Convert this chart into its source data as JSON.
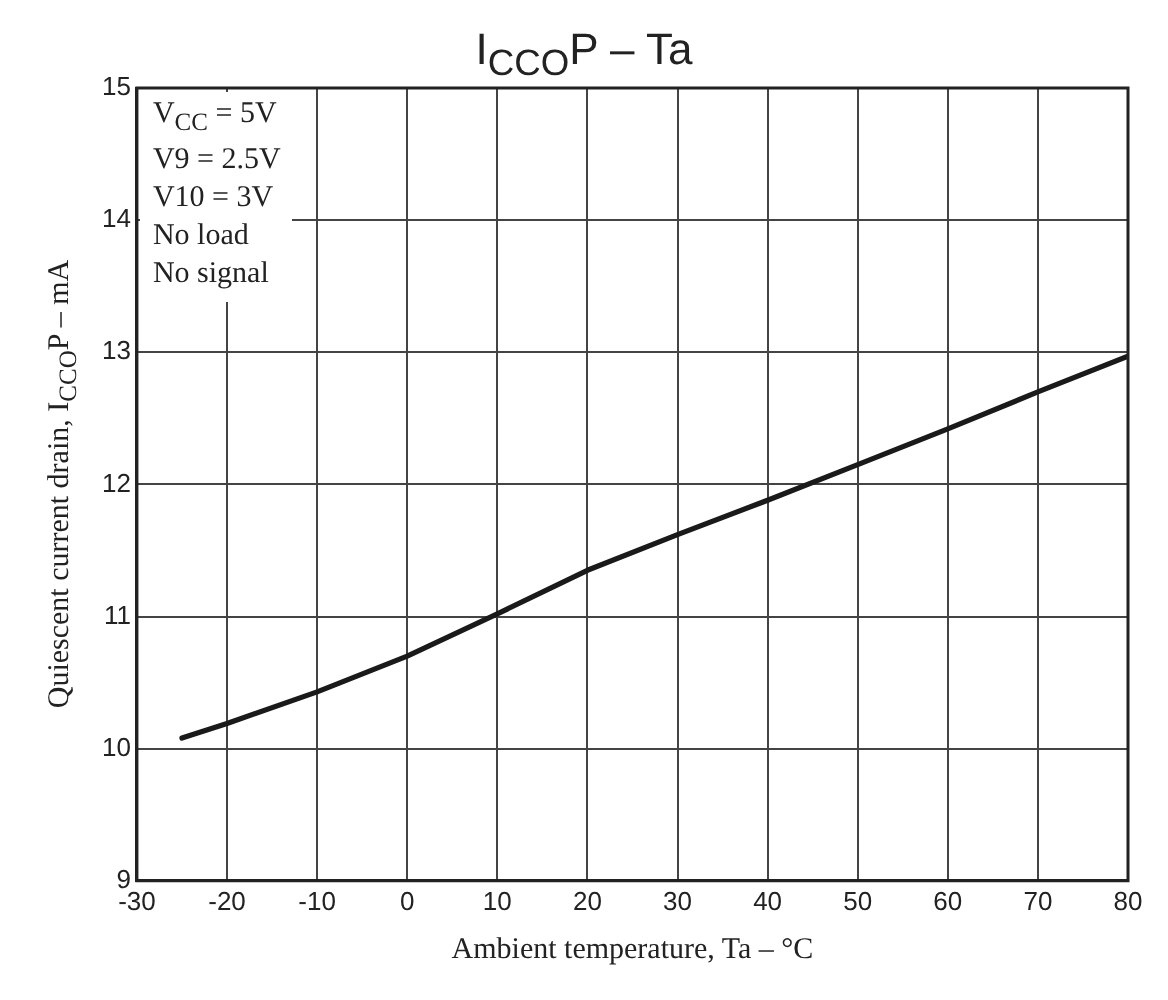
{
  "chart_data": {
    "type": "line",
    "title": "I$_{CCO}$P – Ta",
    "xlabel": "Ambient temperature, Ta – °C",
    "ylabel": "Quiescent current drain, I$_{CCO}$P – mA",
    "x": [
      -25,
      -20,
      -10,
      0,
      10,
      20,
      30,
      40,
      50,
      60,
      70,
      80
    ],
    "series": [
      {
        "color": "#1a1a1a",
        "values": [
          10.08,
          10.19,
          10.43,
          10.7,
          11.02,
          11.35,
          11.62,
          11.88,
          12.15,
          12.42,
          12.7,
          12.97
        ]
      }
    ],
    "xlim": [
      -30,
      80
    ],
    "xticks": [
      -30,
      -20,
      -10,
      0,
      10,
      20,
      30,
      40,
      50,
      60,
      70,
      80
    ],
    "ylim": [
      9,
      15
    ],
    "yticks": [
      9,
      10,
      11,
      12,
      13,
      14,
      15
    ],
    "grid": true,
    "marker": "none",
    "line_style": "solid",
    "legend": false,
    "annotations": [
      "V$_{CC}$ = 5V",
      "V9 = 2.5V",
      "V10 = 3V",
      "No load",
      "No signal"
    ]
  }
}
